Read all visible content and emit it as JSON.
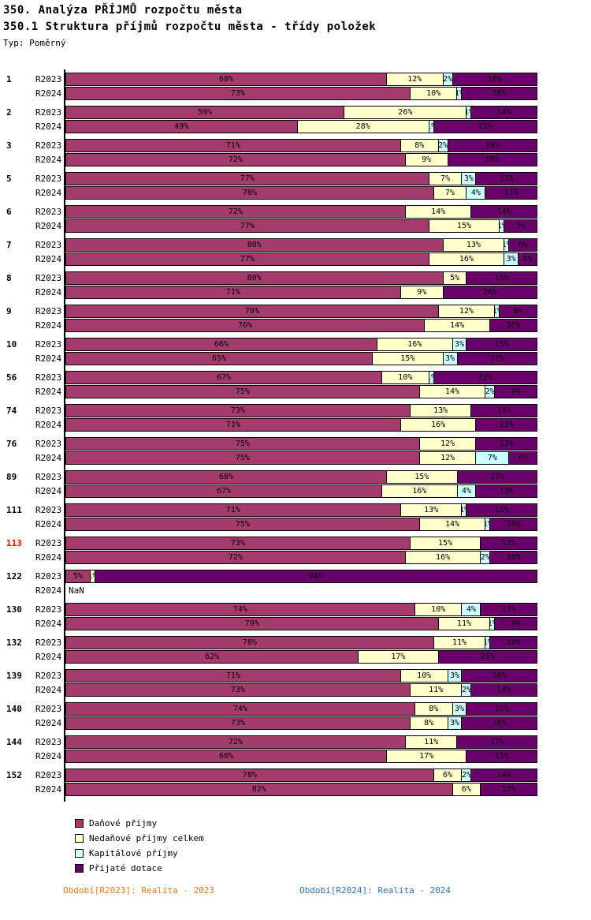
{
  "header": {
    "title": "350. Analýza PŘÍJMŮ rozpočtu města",
    "subtitle": "350.1 Struktura příjmů rozpočtu města - třídy položek",
    "type_label": "Typ: Poměrný"
  },
  "chart_data": {
    "type": "bar",
    "orientation": "horizontal",
    "stacked": true,
    "unit": "%",
    "x_range": [
      0,
      100
    ],
    "series": [
      "Daňové příjmy",
      "Nedaňové příjmy celkem",
      "Kapitálové příjmy",
      "Přijaté dotace"
    ],
    "colors": [
      "#A43B6D",
      "#FFFFCC",
      "#CCFFFF",
      "#6A006A"
    ],
    "groups": [
      {
        "id": "1",
        "highlight": false,
        "rows": [
          {
            "label": "R2023",
            "values": [
              68,
              12,
              2,
              18
            ]
          },
          {
            "label": "R2024",
            "values": [
              73,
              10,
              1,
              16
            ]
          }
        ]
      },
      {
        "id": "2",
        "highlight": false,
        "rows": [
          {
            "label": "R2023",
            "values": [
              59,
              26,
              1,
              14
            ]
          },
          {
            "label": "R2024",
            "values": [
              49,
              28,
              1,
              22
            ]
          }
        ]
      },
      {
        "id": "3",
        "highlight": false,
        "rows": [
          {
            "label": "R2023",
            "values": [
              71,
              8,
              2,
              19
            ]
          },
          {
            "label": "R2024",
            "values": [
              72,
              9,
              0,
              19
            ]
          }
        ]
      },
      {
        "id": "5",
        "highlight": false,
        "rows": [
          {
            "label": "R2023",
            "values": [
              77,
              7,
              3,
              13
            ]
          },
          {
            "label": "R2024",
            "values": [
              78,
              7,
              4,
              11
            ]
          }
        ]
      },
      {
        "id": "6",
        "highlight": false,
        "rows": [
          {
            "label": "R2023",
            "values": [
              72,
              14,
              0,
              14
            ]
          },
          {
            "label": "R2024",
            "values": [
              77,
              15,
              1,
              7
            ]
          }
        ]
      },
      {
        "id": "7",
        "highlight": false,
        "rows": [
          {
            "label": "R2023",
            "values": [
              80,
              13,
              1,
              6
            ]
          },
          {
            "label": "R2024",
            "values": [
              77,
              16,
              3,
              4
            ]
          }
        ]
      },
      {
        "id": "8",
        "highlight": false,
        "rows": [
          {
            "label": "R2023",
            "values": [
              80,
              5,
              0,
              15
            ]
          },
          {
            "label": "R2024",
            "values": [
              71,
              9,
              0,
              20
            ]
          }
        ]
      },
      {
        "id": "9",
        "highlight": false,
        "rows": [
          {
            "label": "R2023",
            "values": [
              79,
              12,
              1,
              8
            ]
          },
          {
            "label": "R2024",
            "values": [
              76,
              14,
              0,
              10
            ]
          }
        ]
      },
      {
        "id": "10",
        "highlight": false,
        "rows": [
          {
            "label": "R2023",
            "values": [
              66,
              16,
              3,
              15
            ]
          },
          {
            "label": "R2024",
            "values": [
              65,
              15,
              3,
              17
            ]
          }
        ]
      },
      {
        "id": "56",
        "highlight": false,
        "rows": [
          {
            "label": "R2023",
            "values": [
              67,
              10,
              1,
              22
            ]
          },
          {
            "label": "R2024",
            "values": [
              75,
              14,
              2,
              9
            ]
          }
        ]
      },
      {
        "id": "74",
        "highlight": false,
        "rows": [
          {
            "label": "R2023",
            "values": [
              73,
              13,
              0,
              14
            ]
          },
          {
            "label": "R2024",
            "values": [
              71,
              16,
              0,
              13
            ]
          }
        ]
      },
      {
        "id": "76",
        "highlight": false,
        "rows": [
          {
            "label": "R2023",
            "values": [
              75,
              12,
              0,
              13
            ]
          },
          {
            "label": "R2024",
            "values": [
              75,
              12,
              7,
              6
            ]
          }
        ]
      },
      {
        "id": "89",
        "highlight": false,
        "rows": [
          {
            "label": "R2023",
            "values": [
              68,
              15,
              0,
              17
            ]
          },
          {
            "label": "R2024",
            "values": [
              67,
              16,
              4,
              13
            ]
          }
        ]
      },
      {
        "id": "111",
        "highlight": false,
        "rows": [
          {
            "label": "R2023",
            "values": [
              71,
              13,
              1,
              15
            ]
          },
          {
            "label": "R2024",
            "values": [
              75,
              14,
              1,
              10
            ]
          }
        ]
      },
      {
        "id": "113",
        "highlight": true,
        "rows": [
          {
            "label": "R2023",
            "values": [
              73,
              15,
              0,
              12
            ]
          },
          {
            "label": "R2024",
            "values": [
              72,
              16,
              2,
              10
            ]
          }
        ]
      },
      {
        "id": "122",
        "highlight": false,
        "rows": [
          {
            "label": "R2023",
            "values": [
              5,
              1,
              0,
              94
            ]
          },
          {
            "label": "R2024",
            "values": null,
            "na": "NaN"
          }
        ]
      },
      {
        "id": "130",
        "highlight": false,
        "rows": [
          {
            "label": "R2023",
            "values": [
              74,
              10,
              4,
              12
            ]
          },
          {
            "label": "R2024",
            "values": [
              79,
              11,
              1,
              9
            ]
          }
        ]
      },
      {
        "id": "132",
        "highlight": false,
        "rows": [
          {
            "label": "R2023",
            "values": [
              78,
              11,
              1,
              10
            ]
          },
          {
            "label": "R2024",
            "values": [
              62,
              17,
              0,
              21
            ]
          }
        ]
      },
      {
        "id": "139",
        "highlight": false,
        "rows": [
          {
            "label": "R2023",
            "values": [
              71,
              10,
              3,
              16
            ]
          },
          {
            "label": "R2024",
            "values": [
              73,
              11,
              2,
              14
            ]
          }
        ]
      },
      {
        "id": "140",
        "highlight": false,
        "rows": [
          {
            "label": "R2023",
            "values": [
              74,
              8,
              3,
              15
            ]
          },
          {
            "label": "R2024",
            "values": [
              73,
              8,
              3,
              16
            ]
          }
        ]
      },
      {
        "id": "144",
        "highlight": false,
        "rows": [
          {
            "label": "R2023",
            "values": [
              72,
              11,
              0,
              17
            ]
          },
          {
            "label": "R2024",
            "values": [
              68,
              17,
              0,
              15
            ]
          }
        ]
      },
      {
        "id": "152",
        "highlight": false,
        "rows": [
          {
            "label": "R2023",
            "values": [
              78,
              6,
              2,
              14
            ]
          },
          {
            "label": "R2024",
            "values": [
              82,
              6,
              0,
              12
            ]
          }
        ]
      }
    ]
  },
  "legend": [
    {
      "label": "Daňové příjmy",
      "color": "#A43B6D"
    },
    {
      "label": "Nedaňové příjmy celkem",
      "color": "#FFFFCC"
    },
    {
      "label": "Kapitálové příjmy",
      "color": "#CCFFFF"
    },
    {
      "label": "Přijaté dotace",
      "color": "#6A006A"
    }
  ],
  "footer": {
    "left": "Období[R2023]: Realita - 2023",
    "right": "Období[R2024]: Realita - 2024",
    "left_color": "#F07818",
    "right_color": "#2E74B5"
  }
}
